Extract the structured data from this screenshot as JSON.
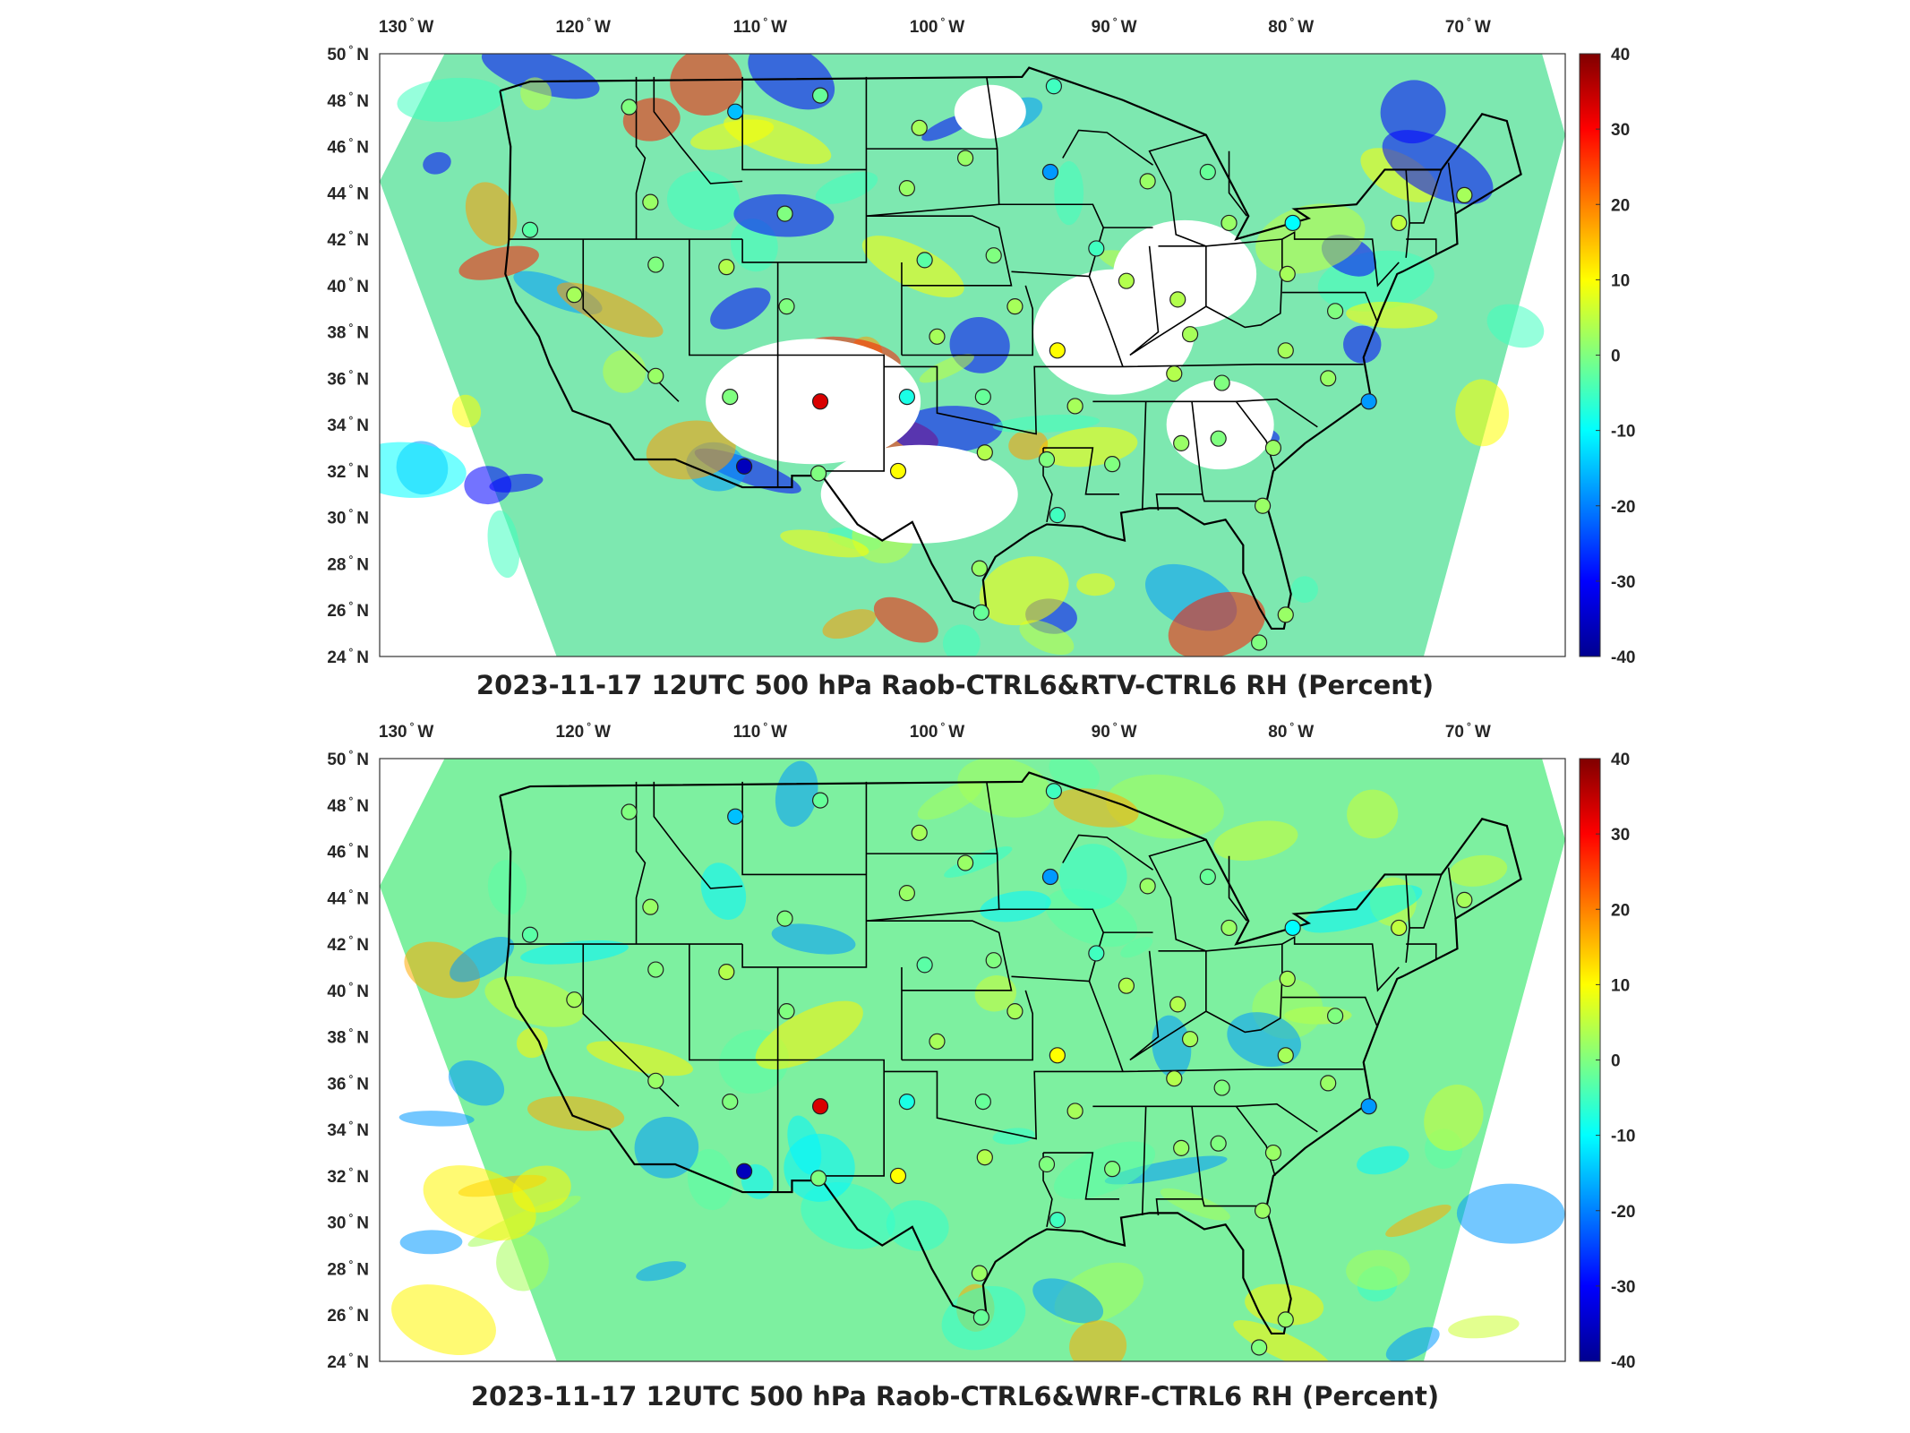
{
  "colors": {
    "jet": [
      "#00008f",
      "#0000ff",
      "#0080ff",
      "#00ffff",
      "#80ff80",
      "#ffff00",
      "#ff8000",
      "#ff0000",
      "#800000"
    ],
    "background_field_top": "#7de8b0",
    "background_field_bottom": "#7df0a0",
    "coast": "#000000",
    "empty": "#ffffff"
  },
  "panels": [
    {
      "id": "top",
      "title": "2023-11-17 12UTC 500 hPa Raob-CTRL6&RTV-CTRL6 RH (Percent)",
      "lon_labels": [
        "130",
        "120",
        "110",
        "100",
        "90",
        "80",
        "70"
      ],
      "lon_suffix": "W",
      "lat_labels": [
        "50",
        "48",
        "46",
        "44",
        "42",
        "40",
        "38",
        "36",
        "34",
        "32",
        "30",
        "28",
        "26",
        "24"
      ],
      "lat_suffix": "N",
      "colorbar_ticks": [
        "40",
        "30",
        "20",
        "10",
        "0",
        "-10",
        "-20",
        "-30",
        "-40"
      ]
    },
    {
      "id": "bottom",
      "title": "2023-11-17 12UTC 500 hPa Raob-CTRL6&WRF-CTRL6 RH (Percent)",
      "lon_labels": [
        "130",
        "120",
        "110",
        "100",
        "90",
        "80",
        "70"
      ],
      "lon_suffix": "W",
      "lat_labels": [
        "50",
        "48",
        "46",
        "44",
        "42",
        "40",
        "38",
        "36",
        "34",
        "32",
        "30",
        "28",
        "26",
        "24"
      ],
      "lat_suffix": "N",
      "colorbar_ticks": [
        "40",
        "30",
        "20",
        "10",
        "0",
        "-10",
        "-20",
        "-30",
        "-40"
      ]
    }
  ],
  "stations": [
    {
      "lon": -117.4,
      "lat": 47.7,
      "v": 0
    },
    {
      "lon": -111.4,
      "lat": 47.5,
      "v": -15
    },
    {
      "lon": -106.6,
      "lat": 48.2,
      "v": -2
    },
    {
      "lon": -101.0,
      "lat": 46.8,
      "v": 3
    },
    {
      "lon": -98.4,
      "lat": 45.5,
      "v": 2
    },
    {
      "lon": -93.6,
      "lat": 44.9,
      "v": -18
    },
    {
      "lon": -93.4,
      "lat": 48.6,
      "v": -5
    },
    {
      "lon": -88.1,
      "lat": 44.5,
      "v": 2
    },
    {
      "lon": -84.7,
      "lat": 44.9,
      "v": -2
    },
    {
      "lon": -83.5,
      "lat": 42.7,
      "v": 2
    },
    {
      "lon": -79.9,
      "lat": 42.7,
      "v": -10
    },
    {
      "lon": -73.9,
      "lat": 42.7,
      "v": 5
    },
    {
      "lon": -70.2,
      "lat": 43.9,
      "v": 3
    },
    {
      "lon": -116.2,
      "lat": 43.6,
      "v": 2
    },
    {
      "lon": -123.0,
      "lat": 42.4,
      "v": -3
    },
    {
      "lon": -108.6,
      "lat": 43.1,
      "v": 0
    },
    {
      "lon": -101.7,
      "lat": 44.2,
      "v": 2
    },
    {
      "lon": -120.5,
      "lat": 39.6,
      "v": 3
    },
    {
      "lon": -115.9,
      "lat": 40.9,
      "v": 0
    },
    {
      "lon": -111.9,
      "lat": 40.8,
      "v": 4
    },
    {
      "lon": -108.5,
      "lat": 39.1,
      "v": 0
    },
    {
      "lon": -100.7,
      "lat": 41.1,
      "v": -3
    },
    {
      "lon": -96.8,
      "lat": 41.3,
      "v": 0
    },
    {
      "lon": -91.0,
      "lat": 41.6,
      "v": -5
    },
    {
      "lon": -89.3,
      "lat": 40.2,
      "v": 4
    },
    {
      "lon": -86.4,
      "lat": 39.4,
      "v": 4
    },
    {
      "lon": -80.2,
      "lat": 40.5,
      "v": 3
    },
    {
      "lon": -77.5,
      "lat": 38.9,
      "v": 0
    },
    {
      "lon": -100.0,
      "lat": 37.8,
      "v": 3
    },
    {
      "lon": -95.6,
      "lat": 39.1,
      "v": 3
    },
    {
      "lon": -93.2,
      "lat": 37.2,
      "v": 10
    },
    {
      "lon": -85.7,
      "lat": 37.9,
      "v": 3
    },
    {
      "lon": -80.3,
      "lat": 37.2,
      "v": 3
    },
    {
      "lon": -115.9,
      "lat": 36.1,
      "v": 2
    },
    {
      "lon": -111.7,
      "lat": 35.2,
      "v": 0
    },
    {
      "lon": -106.6,
      "lat": 35.0,
      "v": 33
    },
    {
      "lon": -101.7,
      "lat": 35.2,
      "v": -8
    },
    {
      "lon": -97.4,
      "lat": 35.2,
      "v": -2
    },
    {
      "lon": -92.2,
      "lat": 34.8,
      "v": 3
    },
    {
      "lon": -86.6,
      "lat": 36.2,
      "v": 4
    },
    {
      "lon": -83.9,
      "lat": 35.8,
      "v": 0
    },
    {
      "lon": -77.9,
      "lat": 36.0,
      "v": 2
    },
    {
      "lon": -75.6,
      "lat": 35.0,
      "v": -18
    },
    {
      "lon": -110.9,
      "lat": 32.2,
      "v": -36
    },
    {
      "lon": -106.7,
      "lat": 31.9,
      "v": 0
    },
    {
      "lon": -102.2,
      "lat": 32.0,
      "v": 10
    },
    {
      "lon": -97.3,
      "lat": 32.8,
      "v": 4
    },
    {
      "lon": -93.8,
      "lat": 32.5,
      "v": 0
    },
    {
      "lon": -90.1,
      "lat": 32.3,
      "v": 0
    },
    {
      "lon": -86.2,
      "lat": 33.2,
      "v": 2
    },
    {
      "lon": -84.1,
      "lat": 33.4,
      "v": 0
    },
    {
      "lon": -81.0,
      "lat": 33.0,
      "v": 2
    },
    {
      "lon": -93.2,
      "lat": 30.1,
      "v": -5
    },
    {
      "lon": -81.6,
      "lat": 30.5,
      "v": 2
    },
    {
      "lon": -97.6,
      "lat": 27.8,
      "v": 2
    },
    {
      "lon": -97.5,
      "lat": 25.9,
      "v": -2
    },
    {
      "lon": -80.3,
      "lat": 25.8,
      "v": 2
    },
    {
      "lon": -81.8,
      "lat": 24.6,
      "v": 0
    }
  ]
}
